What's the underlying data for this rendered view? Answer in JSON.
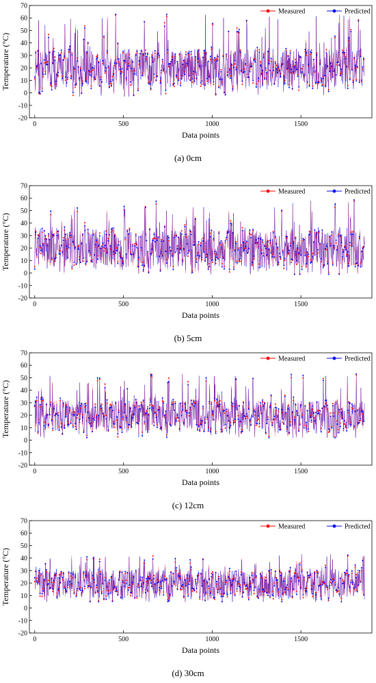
{
  "colors": {
    "measured": "#ff0000",
    "predicted": "#0000ff",
    "axis": "#000000"
  },
  "chart_data": [
    {
      "type": "line",
      "caption": "(a) 0cm",
      "xlabel": "Data points",
      "ylabel": "Temperature (°C)",
      "xlim": [
        -30,
        1900
      ],
      "ylim": [
        -20,
        70
      ],
      "xticks": [
        0,
        500,
        1000,
        1500
      ],
      "yticks": [
        -20,
        -10,
        0,
        10,
        20,
        30,
        40,
        50,
        60,
        70
      ],
      "xtick_labels": [
        "0",
        "500",
        "1000",
        "1500"
      ],
      "ytick_labels": [
        "-20",
        "-10",
        "0",
        "10",
        "20",
        "30",
        "40",
        "50",
        "60",
        "70"
      ],
      "legend_position": "top-right",
      "legend": [
        "Measured",
        "Predicted"
      ],
      "n_points": 1860,
      "series": [
        {
          "name": "Measured",
          "min": -3,
          "max": 63,
          "typical_low": 5,
          "typical_high": 35
        },
        {
          "name": "Predicted",
          "min": -3,
          "max": 63,
          "typical_low": 5,
          "typical_high": 35
        }
      ]
    },
    {
      "type": "line",
      "caption": "(b) 5cm",
      "xlabel": "Data points",
      "ylabel": "Temperature (°C)",
      "xlim": [
        -30,
        1900
      ],
      "ylim": [
        -20,
        70
      ],
      "xticks": [
        0,
        500,
        1000,
        1500
      ],
      "yticks": [
        -20,
        -10,
        0,
        10,
        20,
        30,
        40,
        50,
        60,
        70
      ],
      "xtick_labels": [
        "0",
        "500",
        "1000",
        "1500"
      ],
      "ytick_labels": [
        "-20",
        "-10",
        "0",
        "10",
        "20",
        "30",
        "40",
        "50",
        "60",
        "70"
      ],
      "legend_position": "top-right",
      "legend": [
        "Measured",
        "Predicted"
      ],
      "n_points": 1860,
      "series": [
        {
          "name": "Measured",
          "min": -1,
          "max": 59,
          "typical_low": 5,
          "typical_high": 35
        },
        {
          "name": "Predicted",
          "min": -1,
          "max": 59,
          "typical_low": 5,
          "typical_high": 35
        }
      ]
    },
    {
      "type": "line",
      "caption": "(c) 12cm",
      "xlabel": "Data points",
      "ylabel": "Temperature (°C)",
      "xlim": [
        -30,
        1900
      ],
      "ylim": [
        -20,
        70
      ],
      "xticks": [
        0,
        500,
        1000,
        1500
      ],
      "yticks": [
        -20,
        -10,
        0,
        10,
        20,
        30,
        40,
        50,
        60,
        70
      ],
      "xtick_labels": [
        "0",
        "500",
        "1000",
        "1500"
      ],
      "ytick_labels": [
        "-20",
        "-10",
        "0",
        "10",
        "20",
        "30",
        "40",
        "50",
        "60",
        "70"
      ],
      "legend_position": "top-right",
      "legend": [
        "Measured",
        "Predicted"
      ],
      "n_points": 1860,
      "series": [
        {
          "name": "Measured",
          "min": 2,
          "max": 53,
          "typical_low": 7,
          "typical_high": 32
        },
        {
          "name": "Predicted",
          "min": 2,
          "max": 53,
          "typical_low": 7,
          "typical_high": 32
        }
      ]
    },
    {
      "type": "line",
      "caption": "(d) 30cm",
      "xlabel": "Data points",
      "ylabel": "Temperature (°C)",
      "xlim": [
        -30,
        1900
      ],
      "ylim": [
        -20,
        70
      ],
      "xticks": [
        0,
        500,
        1000,
        1500
      ],
      "yticks": [
        -20,
        -10,
        0,
        10,
        20,
        30,
        40,
        50,
        60,
        70
      ],
      "xtick_labels": [
        "0",
        "500",
        "1000",
        "1500"
      ],
      "ytick_labels": [
        "-20",
        "-10",
        "0",
        "10",
        "20",
        "30",
        "40",
        "50",
        "60",
        "70"
      ],
      "legend_position": "top-right",
      "legend": [
        "Measured",
        "Predicted"
      ],
      "n_points": 1860,
      "series": [
        {
          "name": "Measured",
          "min": 5,
          "max": 43,
          "typical_low": 8,
          "typical_high": 30
        },
        {
          "name": "Predicted",
          "min": 5,
          "max": 43,
          "typical_low": 8,
          "typical_high": 30
        }
      ]
    }
  ]
}
